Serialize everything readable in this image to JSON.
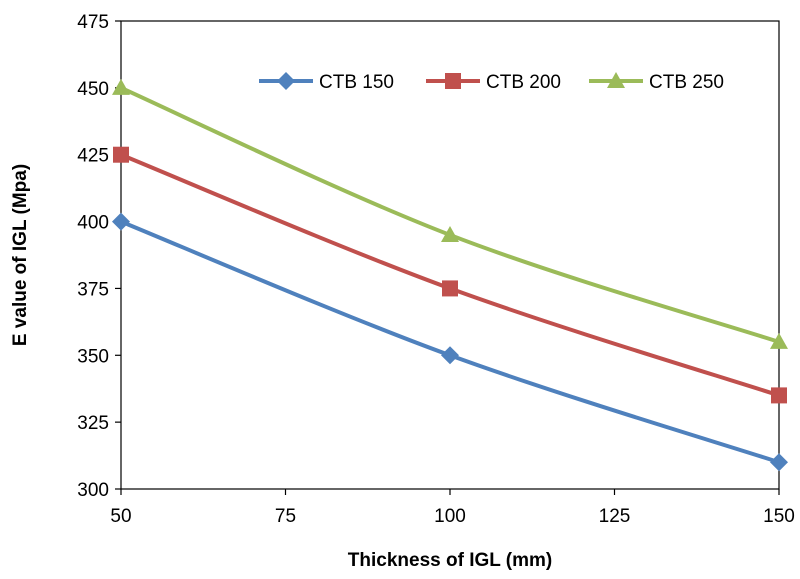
{
  "chart_data": {
    "type": "line",
    "title": "",
    "xlabel": "Thickness of IGL (mm)",
    "ylabel": "E value of IGL (Mpa)",
    "xlim": [
      50,
      150
    ],
    "ylim": [
      300,
      475
    ],
    "xticks": [
      50,
      75,
      100,
      125,
      150
    ],
    "yticks": [
      300,
      325,
      350,
      375,
      400,
      425,
      450,
      475
    ],
    "grid": false,
    "legend_position": "top-right",
    "series": [
      {
        "name": "CTB 150",
        "color": "#4F81BD",
        "marker": "diamond",
        "x": [
          50,
          100,
          150
        ],
        "y": [
          400,
          350,
          310
        ]
      },
      {
        "name": "CTB 200",
        "color": "#C0504D",
        "marker": "square",
        "x": [
          50,
          100,
          150
        ],
        "y": [
          425,
          375,
          335
        ]
      },
      {
        "name": "CTB 250",
        "color": "#9BBB59",
        "marker": "triangle",
        "x": [
          50,
          100,
          150
        ],
        "y": [
          450,
          395,
          355
        ]
      }
    ]
  }
}
